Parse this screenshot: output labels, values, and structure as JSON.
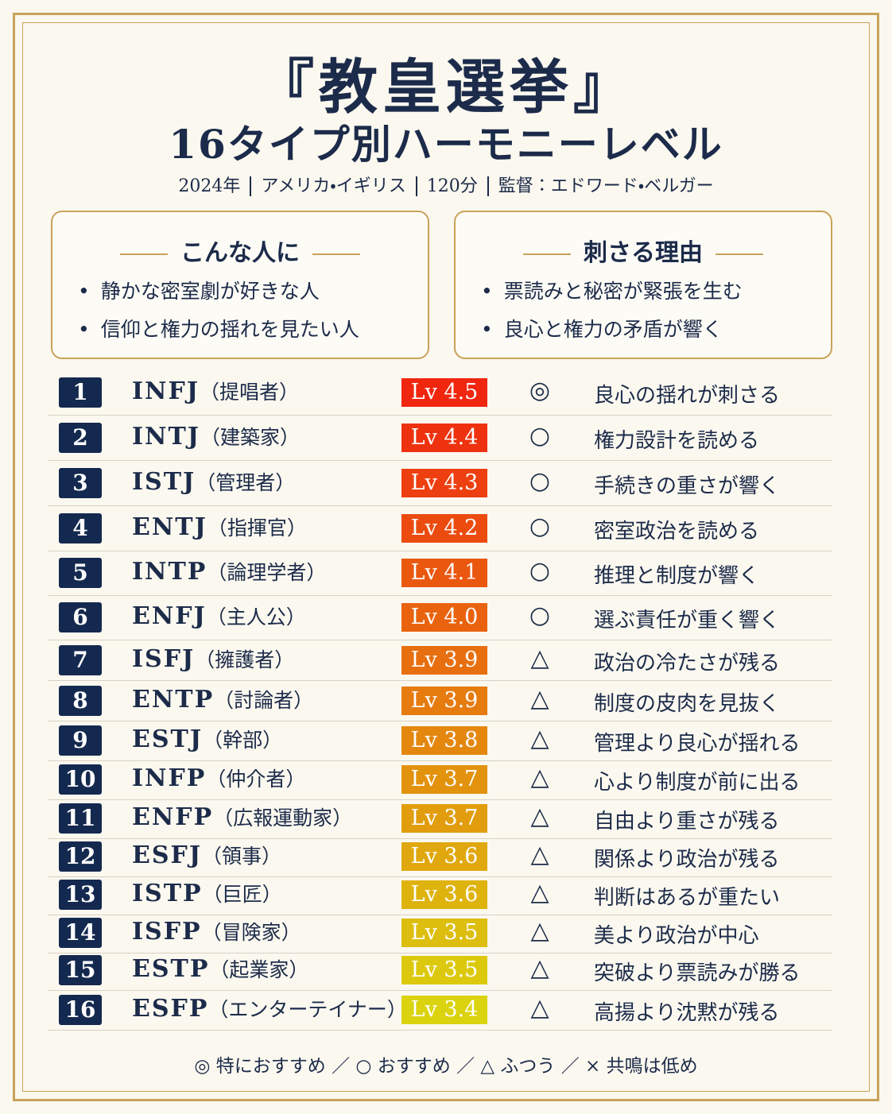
{
  "header": {
    "title": "『教皇選挙』",
    "subtitle": "16タイプ別ハーモニーレベル",
    "meta": [
      "2024年",
      "アメリカ・イギリス",
      "120分",
      "監督：エドワード・ベルガー"
    ]
  },
  "boxes": [
    {
      "title": "こんな人に",
      "items": [
        "静かな密室劇が好きな人",
        "信仰と権力の揺れを見たい人"
      ]
    },
    {
      "title": "刺さる理由",
      "items": [
        "票読みと秘密が緊張を生む",
        "良心と権力の矛盾が響く"
      ]
    }
  ],
  "table": {
    "rows": [
      {
        "rank": 1,
        "type": "INFJ",
        "role": "（提唱者）",
        "level": "Lv 4.5",
        "mark": "◎",
        "comment": "良心の揺れが刺さる"
      },
      {
        "rank": 2,
        "type": "INTJ",
        "role": "（建築家）",
        "level": "Lv 4.4",
        "mark": "○",
        "comment": "権力設計を読める"
      },
      {
        "rank": 3,
        "type": "ISTJ",
        "role": "（管理者）",
        "level": "Lv 4.3",
        "mark": "○",
        "comment": "手続きの重さが響く"
      },
      {
        "rank": 4,
        "type": "ENTJ",
        "role": "（指揮官）",
        "level": "Lv 4.2",
        "mark": "○",
        "comment": "密室政治を読める"
      },
      {
        "rank": 5,
        "type": "INTP",
        "role": "（論理学者）",
        "level": "Lv 4.1",
        "mark": "○",
        "comment": "推理と制度が響く"
      },
      {
        "rank": 6,
        "type": "ENFJ",
        "role": "（主人公）",
        "level": "Lv 4.0",
        "mark": "○",
        "comment": "選ぶ責任が重く響く"
      },
      {
        "rank": 7,
        "type": "ISFJ",
        "role": "（擁護者）",
        "level": "Lv 3.9",
        "mark": "△",
        "comment": "政治の冷たさが残る"
      },
      {
        "rank": 8,
        "type": "ENTP",
        "role": "（討論者）",
        "level": "Lv 3.9",
        "mark": "△",
        "comment": "制度の皮肉を見抜く"
      },
      {
        "rank": 9,
        "type": "ESTJ",
        "role": "（幹部）",
        "level": "Lv 3.8",
        "mark": "△",
        "comment": "管理より良心が揺れる"
      },
      {
        "rank": 10,
        "type": "INFP",
        "role": "（仲介者）",
        "level": "Lv 3.7",
        "mark": "△",
        "comment": "心より制度が前に出る"
      },
      {
        "rank": 11,
        "type": "ENFP",
        "role": "（広報運動家）",
        "level": "Lv 3.7",
        "mark": "△",
        "comment": "自由より重さが残る"
      },
      {
        "rank": 12,
        "type": "ESFJ",
        "role": "（領事）",
        "level": "Lv 3.6",
        "mark": "△",
        "comment": "関係より政治が残る"
      },
      {
        "rank": 13,
        "type": "ISTP",
        "role": "（巨匠）",
        "level": "Lv 3.6",
        "mark": "△",
        "comment": "判断はあるが重たい"
      },
      {
        "rank": 14,
        "type": "ISFP",
        "role": "（冒険家）",
        "level": "Lv 3.5",
        "mark": "△",
        "comment": "美より政治が中心"
      },
      {
        "rank": 15,
        "type": "ESTP",
        "role": "（起業家）",
        "level": "Lv 3.5",
        "mark": "△",
        "comment": "突破より票読みが勝る"
      },
      {
        "rank": 16,
        "type": "ESFP",
        "role": "（エンターテイナー）",
        "level": "Lv 3.4",
        "mark": "△",
        "comment": "高揚より沈黙が残る"
      }
    ]
  },
  "legend": "◎ 特におすすめ ／ ○ おすすめ ／ △ ふつう ／ × 共鳴は低め"
}
